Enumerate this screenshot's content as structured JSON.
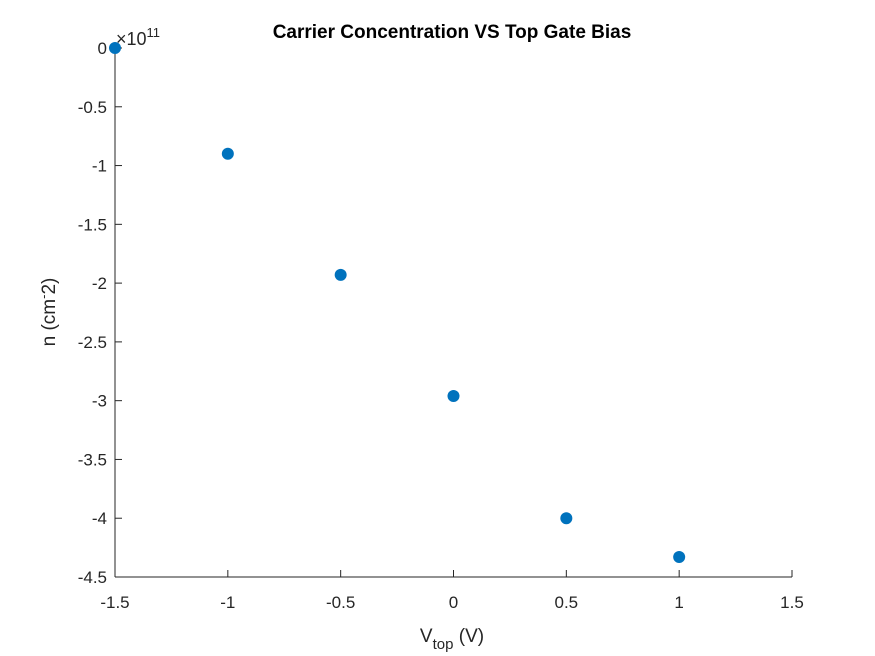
{
  "chart_data": {
    "type": "scatter",
    "title": "Carrier Concentration VS Top Gate Bias",
    "xlabel_main": "V",
    "xlabel_sub": "top",
    "xlabel_unit": " (V)",
    "ylabel": "n (cm^-2)",
    "ylabel_display_main": "n (cm",
    "ylabel_display_sup": "-",
    "ylabel_display_end": "2)",
    "y_exponent_base": "×10",
    "y_exponent_power": "11",
    "xlim": [
      -1.5,
      1.5
    ],
    "ylim": [
      -4.5,
      0
    ],
    "x_ticks": [
      -1.5,
      -1,
      -0.5,
      0,
      0.5,
      1,
      1.5
    ],
    "x_tick_labels": [
      "-1.5",
      "-1",
      "-0.5",
      "0",
      "0.5",
      "1",
      "1.5"
    ],
    "y_ticks": [
      0,
      -0.5,
      -1,
      -1.5,
      -2,
      -2.5,
      -3,
      -3.5,
      -4,
      -4.5
    ],
    "y_tick_labels": [
      "0",
      "-0.5",
      "-1",
      "-1.5",
      "-2",
      "-2.5",
      "-3",
      "-3.5",
      "-4",
      "-4.5"
    ],
    "grid": false,
    "marker_color": "#0072BD",
    "axis_color": "#262626",
    "series": [
      {
        "x": [
          -1.5,
          -1,
          -0.5,
          0,
          0.5,
          1
        ],
        "y": [
          0,
          -0.9,
          -1.93,
          -2.96,
          -4.0,
          -4.33
        ]
      }
    ]
  }
}
